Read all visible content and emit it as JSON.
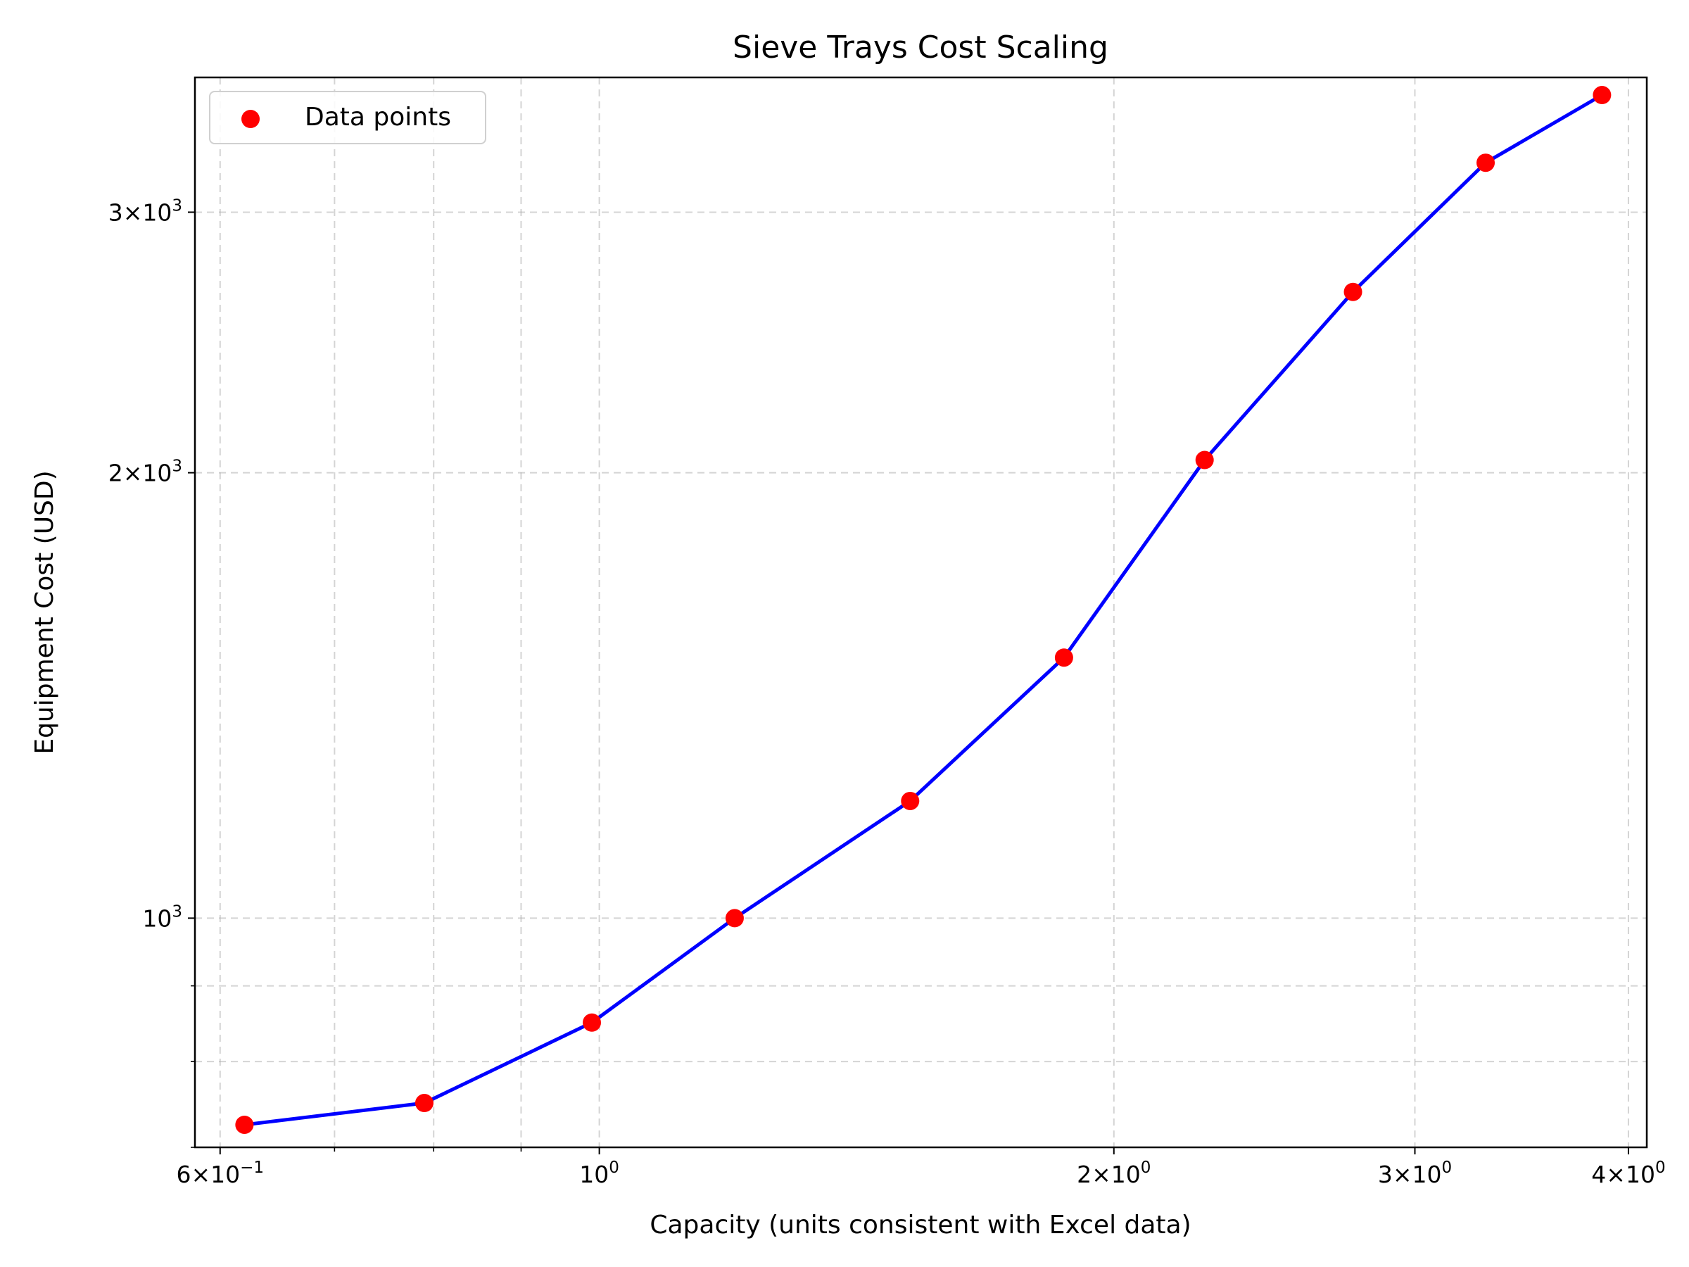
{
  "chart_data": {
    "type": "line",
    "title": "Sieve Trays Cost Scaling",
    "xlabel": "Capacity (units consistent with Excel data)",
    "ylabel": "Equipment Cost (USD)",
    "xscale": "log",
    "yscale": "log",
    "xlim": [
      0.58,
      4.1
    ],
    "ylim": [
      700,
      3700
    ],
    "grid": true,
    "legend_position": "top-left",
    "x_ticks": [
      {
        "value": 0.6,
        "base": "6",
        "sep": "×",
        "mant": "10",
        "exp": "−1"
      },
      {
        "value": 1,
        "base": "",
        "sep": "",
        "mant": "10",
        "exp": "0"
      },
      {
        "value": 2,
        "base": "2",
        "sep": "×",
        "mant": "10",
        "exp": "0"
      },
      {
        "value": 3,
        "base": "3",
        "sep": "×",
        "mant": "10",
        "exp": "0"
      },
      {
        "value": 4,
        "base": "4",
        "sep": "×",
        "mant": "10",
        "exp": "0"
      }
    ],
    "x_minor_ticks": [
      0.7,
      0.8,
      0.9
    ],
    "y_ticks": [
      {
        "value": 1000,
        "base": "",
        "sep": "",
        "mant": "10",
        "exp": "3"
      },
      {
        "value": 2000,
        "base": "2",
        "sep": "×",
        "mant": "10",
        "exp": "3"
      },
      {
        "value": 3000,
        "base": "3",
        "sep": "×",
        "mant": "10",
        "exp": "3"
      }
    ],
    "y_minor_ticks": [
      900,
      800,
      700
    ],
    "series": [
      {
        "name": "Data points",
        "marker_color": "#ff0000",
        "line_color": "#0000ff",
        "x": [
          0.62,
          0.79,
          0.99,
          1.2,
          1.52,
          1.87,
          2.26,
          2.76,
          3.3,
          3.86
        ],
        "y": [
          725,
          750,
          850,
          1000,
          1200,
          1500,
          2040,
          2650,
          3240,
          3600
        ]
      }
    ]
  }
}
